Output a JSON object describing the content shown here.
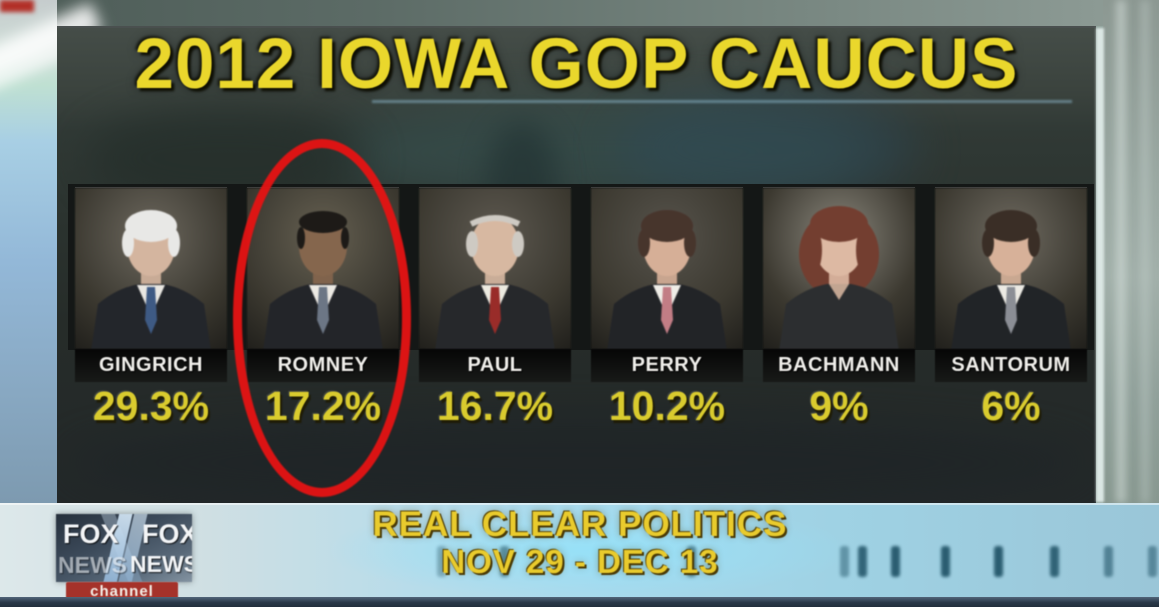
{
  "title": "2012 IOWA GOP CAUCUS",
  "candidates": [
    {
      "name": "GINGRICH",
      "pct": "29.3%",
      "photo": {
        "bg": "#6e685c",
        "hair": "#e8e8e6",
        "skin": "#d9b49a",
        "suit": "#23262c",
        "shirt": "#e9e7e1",
        "tie": "#3a5a8c",
        "hair_style": "full"
      }
    },
    {
      "name": "ROMNEY",
      "pct": "17.2%",
      "photo": {
        "bg": "#67604f",
        "hair": "#1d1a16",
        "skin": "#8a6548",
        "suit": "#23252a",
        "shirt": "#ece9e2",
        "tie": "#6a7688",
        "hair_style": "short"
      }
    },
    {
      "name": "PAUL",
      "pct": "16.7%",
      "photo": {
        "bg": "#5f594e",
        "hair": "#cfcac2",
        "skin": "#dcb79c",
        "suit": "#26282c",
        "shirt": "#eceade",
        "tie": "#a82824",
        "hair_style": "balding"
      }
    },
    {
      "name": "PERRY",
      "pct": "10.2%",
      "photo": {
        "bg": "#58534a",
        "hair": "#4a342a",
        "skin": "#dcae92",
        "suit": "#222428",
        "shirt": "#efede6",
        "tie": "#cc7a84",
        "hair_style": "full"
      }
    },
    {
      "name": "BACHMANN",
      "pct": "9%",
      "photo": {
        "bg": "#8a8578",
        "hair": "#7a3c2c",
        "skin": "#e2b89e",
        "suit": "#2c2e30",
        "shirt": "",
        "tie": "",
        "hair_style": "woman"
      }
    },
    {
      "name": "SANTORUM",
      "pct": "6%",
      "photo": {
        "bg": "#706a5e",
        "hair": "#3c2e24",
        "skin": "#dcb094",
        "suit": "#212428",
        "shirt": "#eceae2",
        "tie": "#8a8e96",
        "hair_style": "full"
      }
    }
  ],
  "annotation": {
    "target": "ROMNEY",
    "shape": "ellipse",
    "color": "#e61313"
  },
  "source": {
    "line1": "REAL CLEAR POLITICS",
    "line2": "NOV 29 - DEC 13"
  },
  "network": {
    "fox": "FOX",
    "news": "NEWS",
    "channel_label": "channel",
    "badge_color": "#a5322a"
  },
  "colors": {
    "title_yellow": "#ead72c",
    "pct_yellow": "#d9cb2e",
    "name_white": "#efeeea",
    "panel_dark": "#262c29",
    "circle_red": "#e61313",
    "source_yellow": "#e9cb2d"
  },
  "chart_data": {
    "type": "table",
    "title": "2012 IOWA GOP CAUCUS",
    "categories": [
      "GINGRICH",
      "ROMNEY",
      "PAUL",
      "PERRY",
      "BACHMANN",
      "SANTORUM"
    ],
    "values": [
      29.3,
      17.2,
      16.7,
      10.2,
      9,
      6
    ],
    "unit": "%",
    "source": "REAL CLEAR POLITICS",
    "date_range": "NOV 29 - DEC 13",
    "annotation": "ROMNEY entry circled in red"
  }
}
